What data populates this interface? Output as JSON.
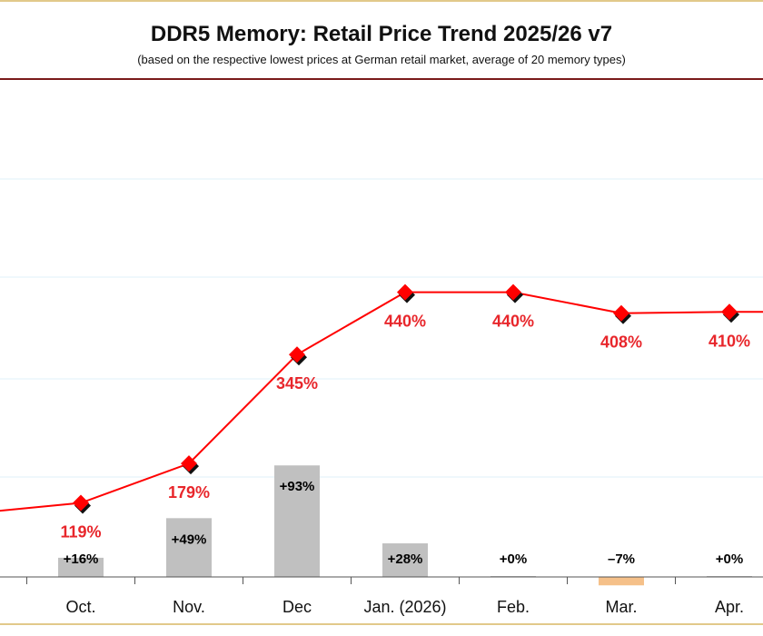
{
  "chart_data": {
    "type": "line+bar",
    "title": "DDR5 Memory: Retail Price Trend 2025/26 v7",
    "subtitle": "(based on the respective lowest prices at German retail market, average of 20 memory types)",
    "categories": [
      "Oct.",
      "Nov.",
      "Dec",
      "Jan. (2026)",
      "Feb.",
      "Mar.",
      "Apr."
    ],
    "line_series": {
      "values": [
        119,
        179,
        345,
        440,
        440,
        408,
        410
      ],
      "labels": [
        "119%",
        "179%",
        "345%",
        "440%",
        "440%",
        "408%",
        "410%"
      ],
      "color": "#ff0000",
      "marker": "diamond",
      "prev_point_value": 103
    },
    "bar_series": {
      "values": [
        16,
        49,
        93,
        28,
        0,
        -7,
        0
      ],
      "labels": [
        "+16%",
        "+49%",
        "+93%",
        "+28%",
        "+0%",
        "–7%",
        "+0%"
      ],
      "positive_color": "#c0c0c0",
      "negative_color": "#f5c089"
    },
    "grid": true,
    "grid_color": "#dff2f8",
    "legend": "none"
  }
}
